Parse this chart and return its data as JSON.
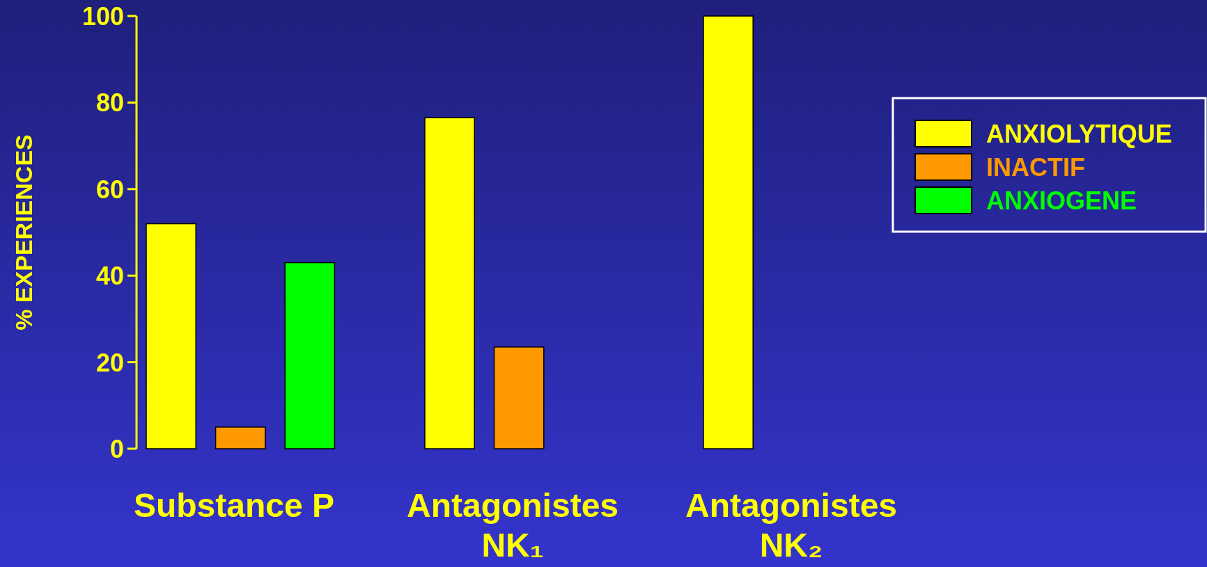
{
  "chart_data": {
    "type": "bar",
    "ylabel": "% EXPERIENCES",
    "categories": [
      "Substance P",
      "Antagonistes NK₁",
      "Antagonistes NK₂"
    ],
    "series": [
      {
        "name": "ANXIOLYTIQUE",
        "color": "#ffff00",
        "values": [
          52,
          76.5,
          100
        ]
      },
      {
        "name": "INACTIF",
        "color": "#ff9900",
        "values": [
          5,
          23.5,
          0
        ]
      },
      {
        "name": "ANXIOGENE",
        "color": "#00ff00",
        "values": [
          43,
          0,
          0
        ]
      }
    ],
    "ylim": [
      0,
      100
    ],
    "yticks": [
      0,
      20,
      40,
      60,
      80,
      100
    ],
    "legend": "top right"
  }
}
